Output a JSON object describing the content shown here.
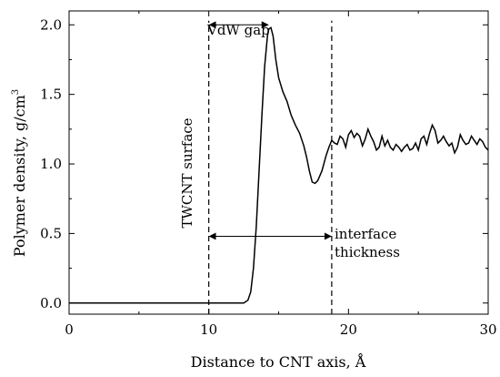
{
  "chart_data": {
    "type": "line",
    "xlabel": "Distance to CNT axis, Å",
    "ylabel_main": "Polymer density, g/cm",
    "ylabel_sup": "3",
    "xlim": [
      0,
      30
    ],
    "ylim": [
      -0.08,
      2.1
    ],
    "x_ticks": [
      0,
      10,
      20,
      30
    ],
    "y_ticks": [
      0.0,
      0.5,
      1.0,
      1.5,
      2.0
    ],
    "x_tick_labels": [
      "0",
      "10",
      "20",
      "30"
    ],
    "y_tick_labels": [
      "0.0",
      "0.5",
      "1.0",
      "1.5",
      "2.0"
    ],
    "grid": false,
    "series": [
      {
        "x": [
          0,
          12.5,
          12.8,
          13.0,
          13.2,
          13.4,
          13.6,
          13.8,
          14.0,
          14.2,
          14.3,
          14.45,
          14.6,
          14.8,
          15.0,
          15.3,
          15.6,
          15.9,
          16.2,
          16.5,
          16.8,
          17.0,
          17.2,
          17.4,
          17.6,
          17.8,
          18.1,
          18.4,
          18.6,
          18.8,
          19.0,
          19.2,
          19.4,
          19.6,
          19.8,
          20.0,
          20.2,
          20.4,
          20.6,
          20.8,
          21.0,
          21.2,
          21.4,
          21.6,
          21.8,
          22.0,
          22.2,
          22.4,
          22.6,
          22.8,
          23.0,
          23.2,
          23.4,
          23.6,
          23.8,
          24.0,
          24.2,
          24.4,
          24.6,
          24.8,
          25.0,
          25.2,
          25.4,
          25.6,
          25.8,
          26.0,
          26.2,
          26.4,
          26.6,
          26.8,
          27.0,
          27.2,
          27.4,
          27.6,
          27.8,
          28.0,
          28.2,
          28.4,
          28.6,
          28.8,
          29.0,
          29.2,
          29.4,
          29.6,
          29.8,
          30.0
        ],
        "y": [
          0.0,
          0.0,
          0.02,
          0.08,
          0.25,
          0.55,
          0.95,
          1.35,
          1.7,
          1.92,
          1.97,
          1.98,
          1.92,
          1.75,
          1.62,
          1.52,
          1.45,
          1.35,
          1.28,
          1.22,
          1.13,
          1.05,
          0.95,
          0.87,
          0.86,
          0.88,
          0.95,
          1.06,
          1.12,
          1.17,
          1.15,
          1.14,
          1.2,
          1.18,
          1.12,
          1.21,
          1.24,
          1.19,
          1.22,
          1.2,
          1.13,
          1.18,
          1.25,
          1.2,
          1.16,
          1.1,
          1.12,
          1.2,
          1.13,
          1.17,
          1.12,
          1.1,
          1.14,
          1.12,
          1.09,
          1.12,
          1.14,
          1.1,
          1.11,
          1.15,
          1.1,
          1.18,
          1.2,
          1.14,
          1.22,
          1.28,
          1.24,
          1.15,
          1.17,
          1.2,
          1.16,
          1.13,
          1.15,
          1.08,
          1.12,
          1.21,
          1.17,
          1.14,
          1.15,
          1.2,
          1.17,
          1.14,
          1.18,
          1.16,
          1.12,
          1.1
        ]
      }
    ],
    "vlines": [
      10,
      18.8
    ],
    "annotations": {
      "vdw_gap": "VdW gap",
      "surface": "TWCNT surface",
      "interface_line1": "interface",
      "interface_line2": "thickness"
    },
    "vdw_arrow": {
      "x1": 10,
      "x2": 14.3,
      "y": 2.0
    },
    "interface_arrow": {
      "x1": 10,
      "x2": 18.8,
      "y": 0.48
    }
  }
}
